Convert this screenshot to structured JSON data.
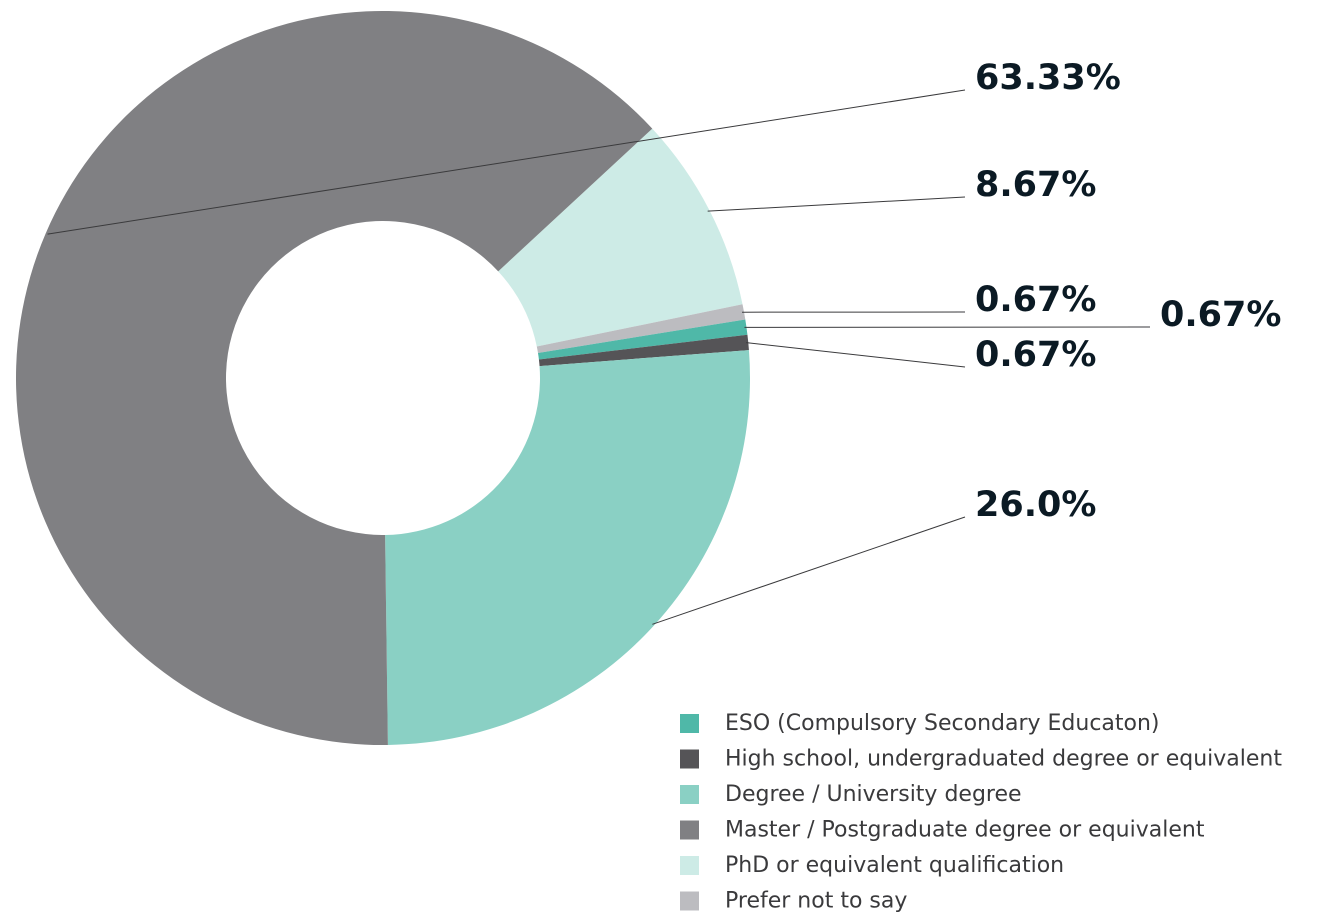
{
  "chart_data": {
    "type": "pie",
    "categories": [
      "ESO (Compulsory Secondary Educaton)",
      "High school, undergraduated degree or equivalent",
      "Degree / University degree",
      "Master / Postgraduate degree or equivalent",
      "PhD or equivalent qualification",
      "Prefer not to say"
    ],
    "values": [
      0.67,
      0.67,
      26,
      63.33,
      8.67,
      0.67
    ],
    "value_labels": [
      "0.67%",
      "0.67%",
      "26.0%",
      "63.33%",
      "8.67%",
      "0.67%"
    ],
    "colors": [
      "#4fb8a8",
      "#555457",
      "#8ad0c4",
      "#808083",
      "#cdebe6",
      "#bcbcc0"
    ]
  }
}
